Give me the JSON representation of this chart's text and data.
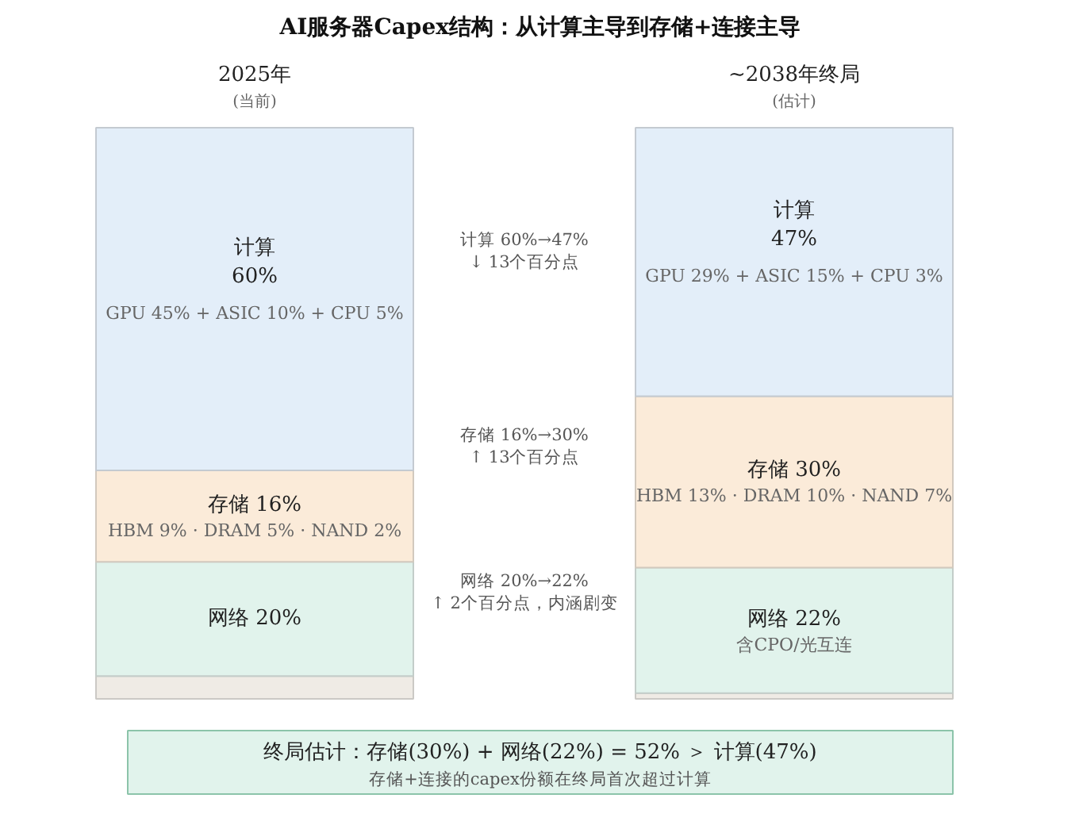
{
  "chart_data": {
    "type": "bar",
    "stacked": true,
    "title": "AI服务器Capex结构：从计算主导到存储+连接主导",
    "categories": [
      "2025年",
      "~2038年终局"
    ],
    "series": [
      {
        "color": "#efebe5",
        "values": [
          4,
          1
        ],
        "value_labels": [
          null,
          null
        ]
      },
      {
        "color": "#e1f3ec",
        "values": [
          20,
          22
        ],
        "value_labels": [
          "网络 20%",
          "网络 22%"
        ]
      },
      {
        "color": "#fbebd9",
        "values": [
          16,
          30
        ],
        "value_labels": [
          "存储 16%",
          "存储 30%"
        ]
      },
      {
        "color": "#e3eef9",
        "values": [
          60,
          47
        ],
        "value_labels": [
          "计算\n60%",
          "计算\n47%"
        ]
      }
    ],
    "annotations": [
      "(当前)",
      "(估计)",
      "GPU 45% + ASIC 10% + CPU 5%",
      "HBM 9% · DRAM 5% · NAND 2%",
      "GPU 29% + ASIC 15% + CPU 3%",
      "HBM 13% · DRAM 10% · NAND 7%",
      "含CPO/光互连",
      "计算 60%→47%\n↓ 13个百分点",
      "存储 16%→30%\n↑ 13个百分点",
      "网络 20%→22%\n↑ 2个百分点，内涵剧变",
      "终局估计：存储(30%) + 网络(22%) = 52% ＞ 计算(47%)",
      "存储+连接的capex份额在终局首次超过计算"
    ]
  }
}
